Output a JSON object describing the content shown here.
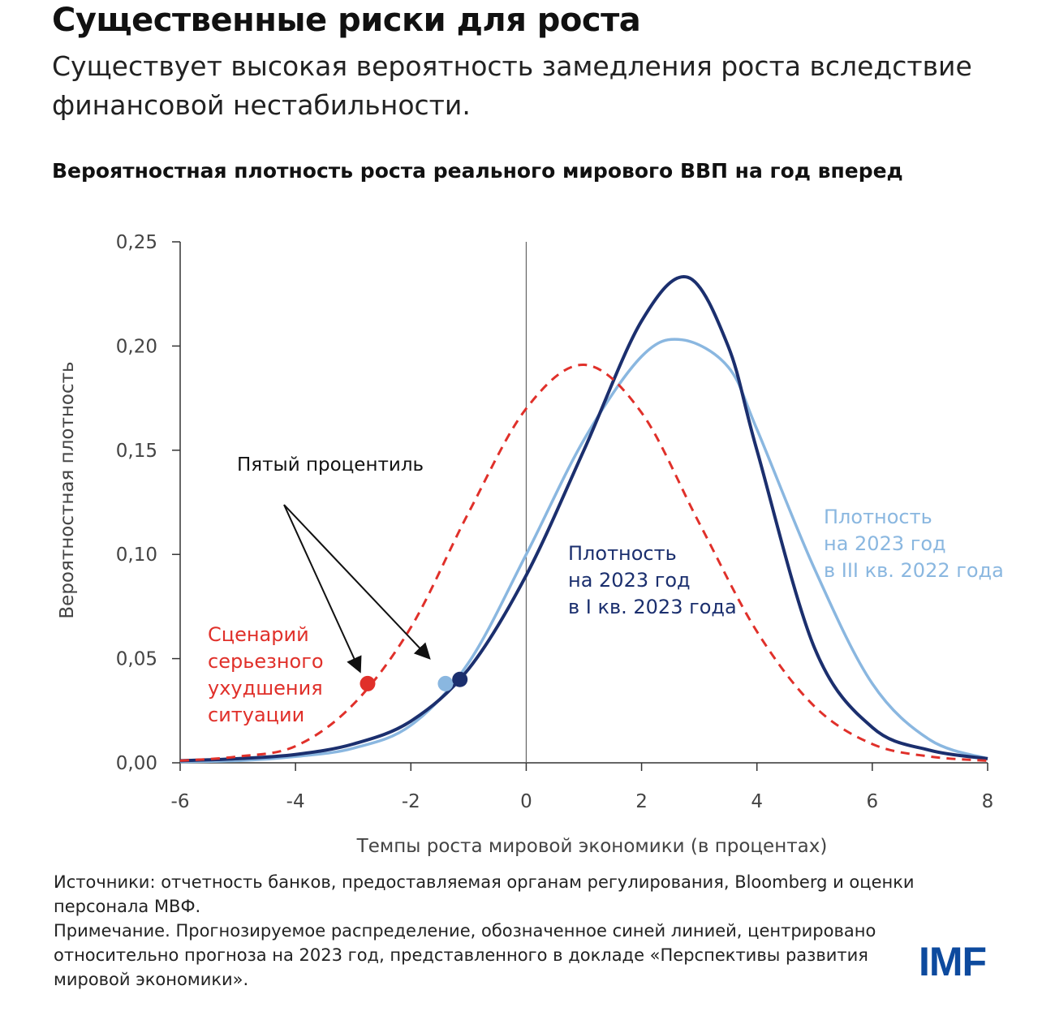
{
  "header": {
    "title": "Существенные риски для роста",
    "subtitle": "Существует высокая вероятность замедления роста вследствие финансовой нестабильности."
  },
  "chart_data": {
    "type": "line",
    "title": "Вероятностная плотность роста реального мирового ВВП на год вперед",
    "xlabel": "Темпы роста мировой экономики (в процентах)",
    "ylabel": "Вероятностная плотность",
    "xlim": [
      -6,
      8
    ],
    "ylim": [
      0,
      0.25
    ],
    "xticks": [
      "-6",
      "-4",
      "-2",
      "0",
      "2",
      "4",
      "6",
      "8"
    ],
    "yticks": [
      "0,00",
      "0,05",
      "0,10",
      "0,15",
      "0,20",
      "0,25"
    ],
    "grid": false,
    "series": [
      {
        "name": "Плотность на 2023 год в III кв. 2022 года",
        "color": "#8ab7e0",
        "style": "solid",
        "x": [
          -6,
          -5,
          -4,
          -3,
          -2,
          -1,
          0,
          1,
          2,
          2.7,
          3.5,
          4,
          5,
          6,
          7,
          8
        ],
        "y": [
          0.0005,
          0.001,
          0.003,
          0.007,
          0.018,
          0.048,
          0.1,
          0.155,
          0.195,
          0.203,
          0.19,
          0.16,
          0.093,
          0.038,
          0.011,
          0.002
        ],
        "fifth_percentile": [
          -1.4,
          0.038
        ]
      },
      {
        "name": "Плотность на 2023 год в I кв. 2023 года",
        "color": "#1b2f6e",
        "style": "solid",
        "x": [
          -6,
          -5,
          -4,
          -3,
          -2,
          -1,
          0,
          1,
          2,
          2.8,
          3.5,
          4,
          5,
          6,
          7,
          8
        ],
        "y": [
          0.001,
          0.002,
          0.004,
          0.009,
          0.02,
          0.045,
          0.09,
          0.15,
          0.212,
          0.233,
          0.2,
          0.15,
          0.055,
          0.017,
          0.006,
          0.002
        ],
        "fifth_percentile": [
          -1.15,
          0.04
        ]
      },
      {
        "name": "Сценарий серьезного ухудшения ситуации",
        "color": "#e0302a",
        "style": "dashed",
        "x": [
          -6,
          -5,
          -4,
          -3,
          -2,
          -1,
          0,
          1,
          2,
          3,
          4,
          5,
          6,
          7,
          8
        ],
        "y": [
          0.001,
          0.003,
          0.008,
          0.028,
          0.065,
          0.12,
          0.17,
          0.191,
          0.168,
          0.115,
          0.063,
          0.027,
          0.009,
          0.003,
          0.001
        ],
        "fifth_percentile": [
          -2.75,
          0.038
        ]
      }
    ],
    "annotations": {
      "fifth_percentile": "Пятый процентиль",
      "light_label": [
        "Плотность",
        "на 2023 год",
        "в III кв. 2022 года"
      ],
      "dark_label": [
        "Плотность",
        "на 2023 год",
        "в I кв. 2023 года"
      ],
      "red_label": [
        "Сценарий",
        "серьезного",
        "ухудшения",
        "ситуации"
      ]
    }
  },
  "footer": {
    "sources": "Источники: отчетность банков, предоставляемая органам регулирования, Bloomberg и оценки персонала МВФ.",
    "note": "Примечание. Прогнозируемое распределение, обозначенное синей линией, центрировано относительно прогноза на 2023 год, представленного в докладе «Перспективы развития мировой экономики».",
    "logo": "IMF"
  }
}
